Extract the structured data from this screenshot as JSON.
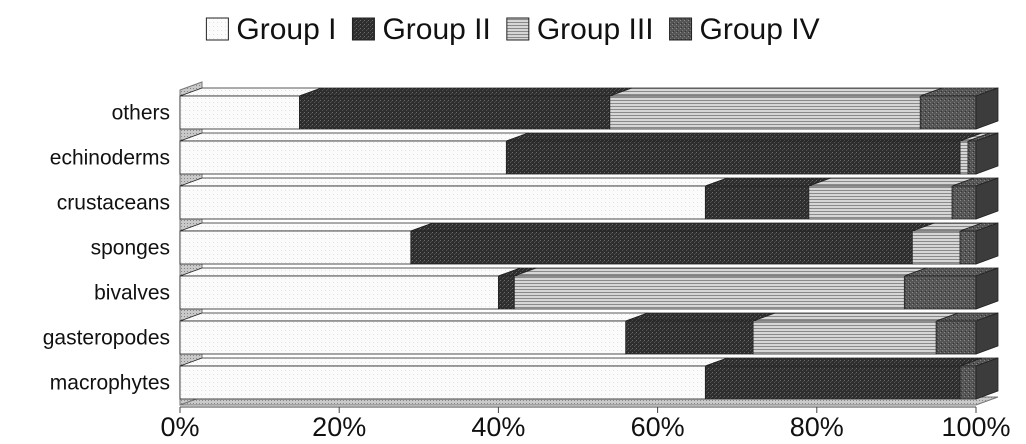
{
  "chart_data": {
    "type": "bar",
    "orientation": "horizontal",
    "stacked": "percent",
    "categories": [
      "others",
      "echinoderms",
      "crustaceans",
      "sponges",
      "bivalves",
      "gasteropodes",
      "macrophytes"
    ],
    "series": [
      {
        "name": "Group I",
        "values": [
          15,
          41,
          66,
          29,
          40,
          56,
          66
        ]
      },
      {
        "name": "Group II",
        "values": [
          39,
          57,
          13,
          63,
          2,
          16,
          32
        ]
      },
      {
        "name": "Group III",
        "values": [
          39,
          1,
          18,
          6,
          49,
          23,
          0
        ]
      },
      {
        "name": "Group IV",
        "values": [
          7,
          1,
          3,
          2,
          9,
          5,
          2
        ]
      }
    ],
    "xlim": [
      0,
      100
    ],
    "xticks": [
      "0%",
      "20%",
      "40%",
      "60%",
      "80%",
      "100%"
    ],
    "legend": "top",
    "grid": false,
    "colors": [
      "#ffffff",
      "#333333",
      "#a8a8a8",
      "#585858"
    ]
  }
}
